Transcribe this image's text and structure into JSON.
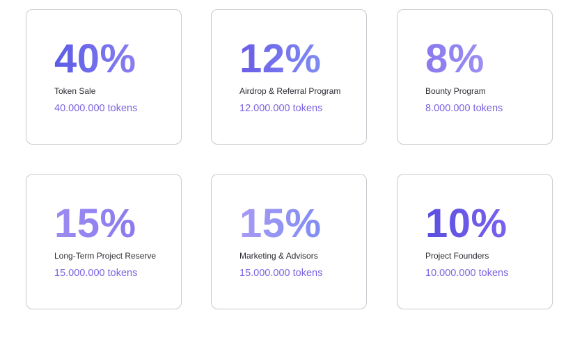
{
  "cards": [
    {
      "percent": "40%",
      "label": "Token Sale",
      "tokens": "40.000.000 tokens",
      "gradient": [
        "#5b5ce6",
        "#8a7ff0"
      ]
    },
    {
      "percent": "12%",
      "label": "Airdrop & Referral Program",
      "tokens": "12.000.000 tokens",
      "gradient": [
        "#6a5ce6",
        "#7f8df2"
      ]
    },
    {
      "percent": "8%",
      "label": "Bounty Program",
      "tokens": "8.000.000 tokens",
      "gradient": [
        "#8a7aee",
        "#9b8ff2"
      ]
    },
    {
      "percent": "15%",
      "label": "Long-Term Project Reserve",
      "tokens": "15.000.000 tokens",
      "gradient": [
        "#9b8cf2",
        "#8a7aee"
      ]
    },
    {
      "percent": "15%",
      "label": "Marketing & Advisors",
      "tokens": "15.000.000 tokens",
      "gradient": [
        "#a79af5",
        "#7f8df2"
      ]
    },
    {
      "percent": "10%",
      "label": "Project Founders",
      "tokens": "10.000.000 tokens",
      "gradient": [
        "#5b4fe0",
        "#7a62ee"
      ]
    }
  ]
}
